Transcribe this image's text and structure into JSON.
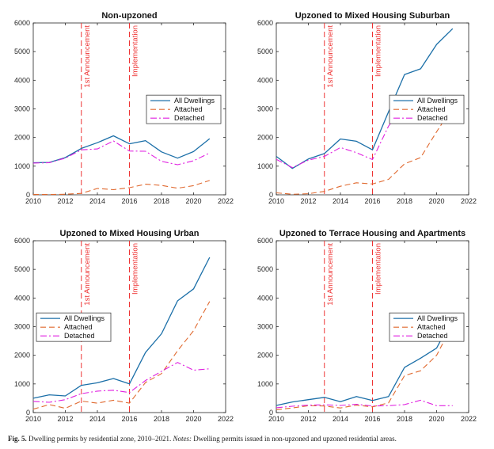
{
  "figure": {
    "caption_label": "Fig. 5.",
    "caption_text": "Dwelling permits by residential zone, 2010–2021.",
    "caption_notes_label": "Notes:",
    "caption_notes_text": "Dwelling permits issued in non-upzoned and upzoned residential areas."
  },
  "colors": {
    "all": "#1b6fa8",
    "attached": "#e0692f",
    "detached": "#e020e0",
    "vline": "#ee3333",
    "vtext": "#ee3333"
  },
  "chart_data": [
    {
      "type": "line",
      "title": "Non-upzoned",
      "xlim": [
        2010,
        2022
      ],
      "ylim": [
        0,
        6000
      ],
      "xticks": [
        2010,
        2012,
        2014,
        2016,
        2018,
        2020,
        2022
      ],
      "yticks": [
        0,
        1000,
        2000,
        3000,
        4000,
        5000,
        6000
      ],
      "x": [
        2010,
        2011,
        2012,
        2013,
        2014,
        2015,
        2016,
        2017,
        2018,
        2019,
        2020,
        2021
      ],
      "series": [
        {
          "name": "All Dwellings",
          "values": [
            1120,
            1130,
            1300,
            1620,
            1820,
            2060,
            1780,
            1890,
            1500,
            1280,
            1510,
            1960
          ]
        },
        {
          "name": "Attached",
          "values": [
            10,
            10,
            20,
            50,
            220,
            180,
            250,
            370,
            330,
            230,
            320,
            500
          ]
        },
        {
          "name": "Detached",
          "values": [
            1110,
            1120,
            1280,
            1570,
            1600,
            1880,
            1530,
            1520,
            1170,
            1050,
            1190,
            1460
          ]
        }
      ],
      "vlines": [
        {
          "x": 2013,
          "label": "1st Announcement"
        },
        {
          "x": 2016,
          "label": "Implementation"
        }
      ],
      "legend": "center-right"
    },
    {
      "type": "line",
      "title": "Upzoned to Mixed Housing Suburban",
      "xlim": [
        2010,
        2022
      ],
      "ylim": [
        0,
        6000
      ],
      "xticks": [
        2010,
        2012,
        2014,
        2016,
        2018,
        2020,
        2022
      ],
      "yticks": [
        0,
        1000,
        2000,
        3000,
        4000,
        5000,
        6000
      ],
      "x": [
        2010,
        2011,
        2012,
        2013,
        2014,
        2015,
        2016,
        2017,
        2018,
        2019,
        2020,
        2021
      ],
      "series": [
        {
          "name": "All Dwellings",
          "values": [
            1340,
            920,
            1250,
            1440,
            1950,
            1870,
            1570,
            2900,
            4200,
            4400,
            5250,
            5800
          ]
        },
        {
          "name": "Attached",
          "values": [
            70,
            20,
            40,
            120,
            300,
            420,
            380,
            540,
            1080,
            1300,
            2200,
            3060
          ]
        },
        {
          "name": "Detached",
          "values": [
            1240,
            950,
            1210,
            1340,
            1650,
            1470,
            1230,
            2400,
            3120,
            3100,
            2950,
            2800
          ]
        }
      ],
      "vlines": [
        {
          "x": 2013,
          "label": "1st Announcement"
        },
        {
          "x": 2016,
          "label": "Implementation"
        }
      ],
      "legend": "center-right"
    },
    {
      "type": "line",
      "title": "Upzoned to Mixed Housing Urban",
      "xlim": [
        2010,
        2022
      ],
      "ylim": [
        0,
        6000
      ],
      "xticks": [
        2010,
        2012,
        2014,
        2016,
        2018,
        2020,
        2022
      ],
      "yticks": [
        0,
        1000,
        2000,
        3000,
        4000,
        5000,
        6000
      ],
      "x": [
        2010,
        2011,
        2012,
        2013,
        2014,
        2015,
        2016,
        2017,
        2018,
        2019,
        2020,
        2021
      ],
      "series": [
        {
          "name": "All Dwellings",
          "values": [
            500,
            620,
            580,
            950,
            1040,
            1190,
            1000,
            2100,
            2750,
            3900,
            4320,
            5420
          ]
        },
        {
          "name": "Attached",
          "values": [
            120,
            280,
            150,
            400,
            330,
            430,
            330,
            1050,
            1360,
            2160,
            2860,
            3880
          ]
        },
        {
          "name": "Detached",
          "values": [
            390,
            360,
            450,
            660,
            750,
            780,
            700,
            1120,
            1440,
            1750,
            1480,
            1530
          ]
        }
      ],
      "vlines": [
        {
          "x": 2013,
          "label": "1st Announcement"
        },
        {
          "x": 2016,
          "label": "Implementation"
        }
      ],
      "legend": "center-left"
    },
    {
      "type": "line",
      "title": "Upzoned to Terrace Housing and Apartments",
      "xlim": [
        2010,
        2022
      ],
      "ylim": [
        0,
        6000
      ],
      "xticks": [
        2010,
        2012,
        2014,
        2016,
        2018,
        2020,
        2022
      ],
      "yticks": [
        0,
        1000,
        2000,
        3000,
        4000,
        5000,
        6000
      ],
      "x": [
        2010,
        2011,
        2012,
        2013,
        2014,
        2015,
        2016,
        2017,
        2018,
        2019,
        2020,
        2021
      ],
      "series": [
        {
          "name": "All Dwellings",
          "values": [
            250,
            370,
            450,
            530,
            380,
            560,
            420,
            560,
            1580,
            1900,
            2250,
            3300
          ]
        },
        {
          "name": "Attached",
          "values": [
            100,
            160,
            240,
            230,
            160,
            260,
            200,
            340,
            1290,
            1460,
            2000,
            3080
          ]
        },
        {
          "name": "Detached",
          "values": [
            170,
            220,
            260,
            270,
            250,
            290,
            230,
            240,
            280,
            430,
            240,
            240
          ]
        }
      ],
      "vlines": [
        {
          "x": 2013,
          "label": "1st Announcement"
        },
        {
          "x": 2016,
          "label": "Implementation"
        }
      ],
      "legend": "center-right"
    }
  ]
}
